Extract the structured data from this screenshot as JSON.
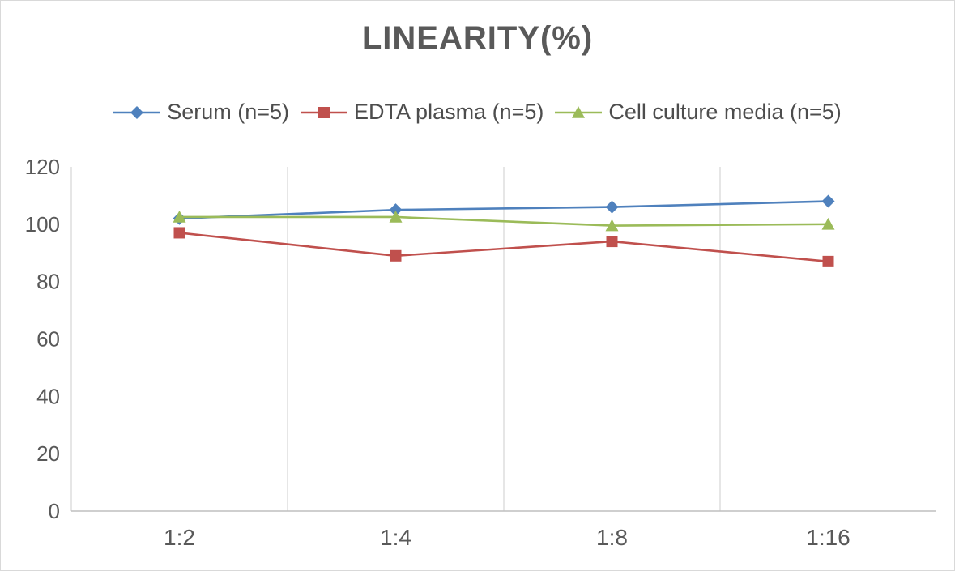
{
  "title": "LINEARITY(%)",
  "chart_data": {
    "type": "line",
    "categories": [
      "1:2",
      "1:4",
      "1:8",
      "1:16"
    ],
    "series": [
      {
        "name": "Serum (n=5)",
        "color": "#4F81BD",
        "marker": "diamond",
        "values": [
          102,
          105,
          106,
          108
        ]
      },
      {
        "name": "EDTA plasma (n=5)",
        "color": "#C0504D",
        "marker": "square",
        "values": [
          97,
          89,
          94,
          87
        ]
      },
      {
        "name": "Cell culture media (n=5)",
        "color": "#9BBB59",
        "marker": "triangle",
        "values": [
          102.5,
          102.5,
          99.5,
          100
        ]
      }
    ],
    "xlabel": "",
    "ylabel": "",
    "ylim": [
      0,
      120
    ],
    "ytick_step": 20,
    "yticks": [
      0,
      20,
      40,
      60,
      80,
      100,
      120
    ],
    "grid": "vertical-only",
    "legend_position": "top",
    "colors": {
      "title_text": "#595959",
      "axis_text": "#595959",
      "legend_text": "#4d4d4d",
      "gridline": "#d9d9d9",
      "axis_line": "#bfbfbf"
    }
  }
}
